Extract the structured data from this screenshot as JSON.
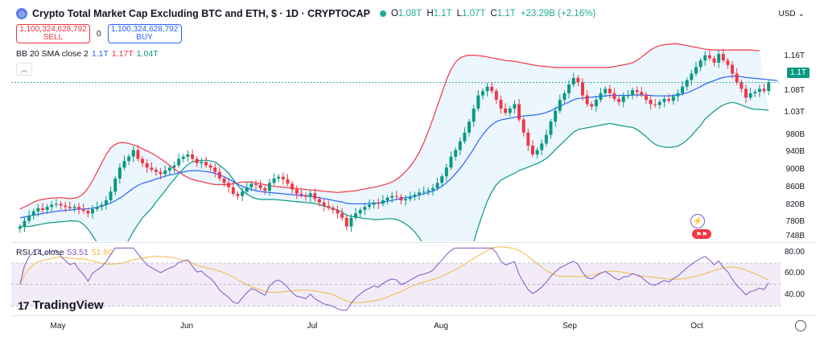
{
  "header": {
    "symbol_logo": "◎",
    "title": "Crypto Total Market Cap Excluding BTC and ETH, $ · 1D · CRYPTOCAP",
    "ohlc": [
      {
        "k": "O",
        "v": "1.08T"
      },
      {
        "k": "H",
        "v": "1.1T"
      },
      {
        "k": "L",
        "v": "1.07T"
      },
      {
        "k": "C",
        "v": "1.1T"
      },
      {
        "k": "",
        "v": "+23.29B (+2.16%)"
      }
    ]
  },
  "trade": {
    "sell_value": "1,100,324,628,792",
    "sell_label": "SELL",
    "spread": "0",
    "buy_value": "1,100,324,628,792",
    "buy_label": "BUY"
  },
  "bb_legend": {
    "name": "BB 20 SMA close 2",
    "basis": "1.1T",
    "upper": "1.17T",
    "lower": "1.04T"
  },
  "rsi_legend": {
    "name": "RSI 14 close",
    "rsi": "53.51",
    "ma": "51.80"
  },
  "currency": "USD",
  "price_tag": "1.1T",
  "price_axis": [
    "1.16T",
    "1.08T",
    "1.03T",
    "980B",
    "940B",
    "900B",
    "860B",
    "820B",
    "780B",
    "748B"
  ],
  "rsi_axis": [
    "80.00",
    "60.00",
    "40.00"
  ],
  "months": [
    "May",
    "Jun",
    "Jul",
    "Aug",
    "Sep",
    "Oct"
  ],
  "branding": "TradingView",
  "colors": {
    "up": "#089981",
    "down": "#f23645",
    "basis": "#2962ff",
    "upper": "#f23645",
    "lower": "#089981",
    "rsi": "#7e57c2",
    "rsi_ma": "#f5b942"
  },
  "chart_data": {
    "type": "candlestick",
    "ylim": [
      740,
      1200
    ],
    "closes": [
      770,
      783,
      795,
      805,
      812,
      808,
      815,
      820,
      822,
      818,
      815,
      812,
      815,
      810,
      806,
      800,
      810,
      815,
      820,
      830,
      850,
      880,
      905,
      920,
      930,
      945,
      925,
      915,
      905,
      900,
      895,
      890,
      898,
      905,
      910,
      925,
      930,
      935,
      925,
      915,
      918,
      910,
      905,
      895,
      880,
      870,
      860,
      845,
      840,
      850,
      860,
      868,
      865,
      858,
      852,
      870,
      880,
      884,
      878,
      868,
      855,
      845,
      842,
      838,
      846,
      833,
      825,
      817,
      813,
      808,
      800,
      790,
      770,
      790,
      800,
      808,
      815,
      820,
      825,
      822,
      830,
      836,
      840,
      838,
      830,
      833,
      838,
      843,
      848,
      850,
      853,
      858,
      870,
      885,
      905,
      930,
      945,
      965,
      985,
      1010,
      1040,
      1070,
      1080,
      1090,
      1080,
      1060,
      1040,
      1030,
      1040,
      1050,
      1015,
      985,
      955,
      935,
      945,
      960,
      980,
      1010,
      1035,
      1060,
      1075,
      1095,
      1110,
      1100,
      1070,
      1050,
      1045,
      1060,
      1075,
      1085,
      1075,
      1062,
      1055,
      1068,
      1070,
      1082,
      1078,
      1072,
      1060,
      1050,
      1048,
      1055,
      1062,
      1058,
      1068,
      1075,
      1090,
      1105,
      1120,
      1135,
      1150,
      1162,
      1155,
      1145,
      1165,
      1150,
      1140,
      1120,
      1100,
      1085,
      1065,
      1075,
      1078,
      1085,
      1080,
      1100
    ],
    "bb_basis": [
      790,
      792,
      794,
      796,
      798,
      800,
      802,
      803,
      805,
      806,
      807,
      808,
      809,
      810,
      810,
      811,
      812,
      814,
      817,
      820,
      824,
      829,
      835,
      842,
      850,
      858,
      864,
      869,
      872,
      875,
      879,
      882,
      885,
      888,
      890,
      893,
      895,
      897,
      898,
      898,
      897,
      896,
      894,
      892,
      888,
      884,
      879,
      873,
      867,
      862,
      858,
      855,
      852,
      850,
      849,
      848,
      847,
      846,
      845,
      844,
      843,
      842,
      841,
      840,
      839,
      838,
      836,
      834,
      832,
      830,
      828,
      826,
      823,
      822,
      822,
      822,
      822,
      823,
      823,
      824,
      826,
      828,
      830,
      832,
      834,
      836,
      838,
      840,
      842,
      845,
      848,
      851,
      856,
      862,
      870,
      880,
      891,
      903,
      917,
      932,
      948,
      965,
      980,
      993,
      1003,
      1010,
      1014,
      1016,
      1018,
      1020,
      1022,
      1023,
      1024,
      1025,
      1026,
      1028,
      1031,
      1035,
      1040,
      1045,
      1050,
      1055,
      1060,
      1063,
      1064,
      1065,
      1066,
      1067,
      1068,
      1069,
      1070,
      1070,
      1070,
      1070,
      1070,
      1071,
      1071,
      1071,
      1071,
      1070,
      1069,
      1069,
      1069,
      1069,
      1070,
      1071,
      1073,
      1076,
      1080,
      1085,
      1090,
      1096,
      1100,
      1104,
      1108,
      1111,
      1113,
      1114,
      1114,
      1113,
      1111,
      1110,
      1109,
      1108,
      1107,
      1106,
      1105,
      1104
    ],
    "bb_upper": [
      810,
      815,
      820,
      826,
      830,
      832,
      834,
      835,
      836,
      836,
      835,
      834,
      835,
      838,
      845,
      858,
      875,
      895,
      915,
      935,
      950,
      958,
      962,
      962,
      960,
      957,
      953,
      948,
      943,
      938,
      932,
      925,
      918,
      910,
      902,
      895,
      888,
      882,
      878,
      875,
      873,
      870,
      868,
      866,
      866,
      866,
      866,
      868,
      870,
      872,
      872,
      872,
      870,
      868,
      866,
      864,
      862,
      861,
      860,
      859,
      858,
      857,
      856,
      855,
      854,
      853,
      852,
      851,
      850,
      849,
      848,
      849,
      850,
      851,
      852,
      854,
      856,
      858,
      860,
      862,
      865,
      868,
      872,
      878,
      886,
      896,
      908,
      922,
      940,
      962,
      988,
      1016,
      1046,
      1076,
      1106,
      1130,
      1146,
      1156,
      1160,
      1162,
      1162,
      1161,
      1160,
      1158,
      1156,
      1154,
      1152,
      1150,
      1149,
      1148,
      1146,
      1144,
      1142,
      1140,
      1138,
      1137,
      1136,
      1135,
      1134,
      1134,
      1134,
      1134,
      1134,
      1134,
      1134,
      1134,
      1134,
      1134,
      1134,
      1134,
      1134,
      1136,
      1138,
      1140,
      1142,
      1145,
      1150,
      1158,
      1166,
      1174,
      1180,
      1184,
      1186,
      1187,
      1188,
      1188,
      1186,
      1184,
      1182,
      1180,
      1178,
      1176,
      1175,
      1174,
      1174,
      1174,
      1174,
      1174,
      1174,
      1174,
      1174,
      1174,
      1173,
      1172
    ],
    "bb_lower": [
      770,
      770,
      770,
      772,
      774,
      776,
      778,
      779,
      780,
      781,
      782,
      783,
      783,
      782,
      775,
      764,
      749,
      733,
      719,
      705,
      698,
      700,
      708,
      722,
      740,
      759,
      775,
      790,
      801,
      812,
      826,
      839,
      852,
      866,
      878,
      891,
      902,
      912,
      918,
      921,
      921,
      922,
      920,
      918,
      910,
      902,
      892,
      878,
      864,
      852,
      844,
      838,
      834,
      832,
      832,
      832,
      832,
      831,
      830,
      829,
      828,
      827,
      826,
      825,
      824,
      823,
      820,
      817,
      814,
      811,
      808,
      803,
      796,
      793,
      792,
      790,
      788,
      788,
      786,
      786,
      787,
      788,
      788,
      786,
      782,
      776,
      768,
      758,
      744,
      728,
      708,
      686,
      666,
      648,
      634,
      630,
      636,
      650,
      674,
      702,
      734,
      769,
      800,
      828,
      850,
      866,
      876,
      882,
      887,
      892,
      898,
      902,
      906,
      910,
      914,
      919,
      926,
      935,
      946,
      956,
      966,
      976,
      986,
      992,
      994,
      996,
      998,
      1000,
      1002,
      1004,
      1006,
      1004,
      1002,
      1000,
      998,
      997,
      992,
      984,
      976,
      966,
      958,
      954,
      952,
      951,
      952,
      954,
      960,
      968,
      978,
      990,
      1002,
      1016,
      1025,
      1034,
      1042,
      1048,
      1052,
      1054,
      1052,
      1048,
      1044,
      1040,
      1038,
      1038,
      1037,
      1036
    ]
  }
}
